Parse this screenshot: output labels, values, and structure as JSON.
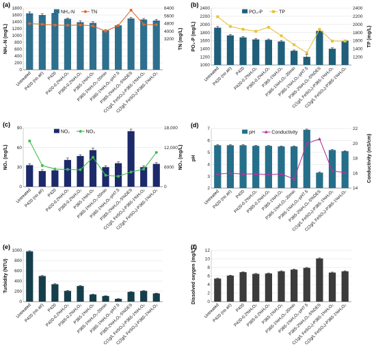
{
  "chart_data": [
    {
      "panel": "(a)",
      "type": "bar",
      "categories": [
        "Untreated",
        "P420 (no air)",
        "P420",
        "P420-0.2%H₂O₂",
        "P365-0.2%H₂O₂",
        "P365-1%H₂O₂",
        "P365-1%H₂O₂-20min",
        "P365-1%H₂O₂-pH7.5",
        "P365-2%H₂O₂-5%DES",
        "C(1g/L FeSO₄)-P365-1%H₂O₂",
        "C(2g/L FeSO₄)-P365-1%H₂O₂"
      ],
      "ylabel": "NH₄-N (mg/L)",
      "y2label": "TN (mg/L)",
      "ylim": [
        0,
        1800
      ],
      "yticks": [
        0,
        200,
        400,
        600,
        800,
        1000,
        1200,
        1400,
        1600,
        1800
      ],
      "y2lim": [
        0,
        6400
      ],
      "y2ticks": [
        3200,
        4000,
        4800,
        5600,
        6400
      ],
      "legend": "top-center",
      "series": [
        {
          "name": "NH₄-N",
          "kind": "bar",
          "axis": "left",
          "color": "#2e6f8e",
          "values": [
            1650,
            1600,
            1660,
            1490,
            1390,
            1370,
            1150,
            1300,
            1500,
            1470,
            1440
          ],
          "errors": [
            45,
            40,
            35,
            20,
            40,
            35,
            20,
            25,
            35,
            30,
            35
          ]
        },
        {
          "name": "TN",
          "kind": "line",
          "axis": "right",
          "color": "#e06a2c",
          "marker": "circle",
          "values": [
            4800,
            4730,
            4650,
            4620,
            4660,
            4560,
            4000,
            4600,
            6200,
            4700,
            4680
          ]
        }
      ]
    },
    {
      "panel": "(b)",
      "type": "bar",
      "categories": [
        "Untreated",
        "P420 (no air)",
        "P420",
        "P420-0.2%H₂O₂",
        "P365-0.2%H₂O₂",
        "P365-1%H₂O₂",
        "P365-1%H₂O₂-20min",
        "P365-1%H₂O₂-pH7.5",
        "P365-2%H₂O₂-5%DES",
        "C(1g/L FeSO₄)-P365-1%H₂O₂",
        "C(2g/L FeSO₄)-P365-1%H₂O₂"
      ],
      "ylabel": "PO₄-P (mg/L)",
      "y2label": "TP (mg/L)",
      "ylim": [
        1000,
        2400
      ],
      "yticks": [
        1000,
        1200,
        1400,
        1600,
        1800,
        2000,
        2200,
        2400
      ],
      "y2lim": [
        1000,
        2400
      ],
      "y2ticks": [
        1200,
        1400,
        1600,
        1800,
        2000,
        2200,
        2400
      ],
      "legend": "top-center",
      "series": [
        {
          "name": "PO₄-P",
          "kind": "bar",
          "axis": "left",
          "color": "#1f5f7a",
          "values": [
            1920,
            1730,
            1680,
            1630,
            1620,
            1580,
            1350,
            1200,
            1840,
            1400,
            1600
          ],
          "errors": [
            30,
            25,
            20,
            20,
            20,
            25,
            20,
            60,
            30,
            25,
            20
          ]
        },
        {
          "name": "TP",
          "kind": "line",
          "axis": "right",
          "color": "#e8c33a",
          "marker": "square",
          "values": [
            2190,
            1950,
            1880,
            1830,
            1930,
            1720,
            1500,
            1300,
            1880,
            1590,
            1590
          ]
        }
      ]
    },
    {
      "panel": "(c)",
      "type": "bar",
      "categories": [
        "Untreated",
        "P420 (no air)",
        "P420",
        "P420-0.2%H₂O₂",
        "P365-0.2%H₂O₂",
        "P365-1%H₂O₂",
        "P365-1%H₂O₂-20min",
        "P365-1%H₂O₂-pH7.5",
        "P365-2%H₂O₂-5%DES",
        "C(1g/L FeSO₄)-P365-1%H₂O₂",
        "C(2g/L FeSO₄)-P365-1%H₂O₂"
      ],
      "ylabel": "NO₂ (mg/L)",
      "y2label": "NO₃ (mg/L)",
      "ylim": [
        0,
        90
      ],
      "yticks": [
        0,
        30,
        60,
        90
      ],
      "y2lim": [
        0,
        18000
      ],
      "y2ticks": [
        0,
        6000,
        12000,
        18000
      ],
      "legend": "top-center",
      "series": [
        {
          "name": "NO₂",
          "kind": "bar",
          "axis": "left",
          "color": "#1c2a6b",
          "values": [
            33,
            24,
            25,
            41,
            47,
            56,
            30,
            36,
            85,
            30,
            35
          ],
          "errors": [
            2,
            2,
            2,
            3,
            2,
            3,
            2,
            2,
            3,
            2,
            2
          ]
        },
        {
          "name": "NO₃",
          "kind": "line",
          "axis": "right",
          "color": "#3cbf4a",
          "marker": "circle",
          "values": [
            14000,
            6500,
            5400,
            5300,
            5200,
            9000,
            3500,
            3200,
            4500,
            5400,
            10500
          ]
        }
      ]
    },
    {
      "panel": "(d)",
      "type": "bar",
      "categories": [
        "Untreated",
        "P420 (no air)",
        "P420",
        "P420-0.2%H₂O₂",
        "P365-0.2%H₂O₂",
        "P365-1%H₂O₂",
        "P365-1%H₂O₂-20min",
        "P365-1%H₂O₂-pH7.5",
        "P365-2%H₂O₂-5%DES",
        "C(1g/L FeSO₄)-P365-1%H₂O₂",
        "C(2g/L FeSO₄)-P365-1%H₂O₂"
      ],
      "ylabel": "pH",
      "y2label": "Conductivity (mS/cm)",
      "ylim": [
        2,
        7
      ],
      "yticks": [
        2,
        3,
        4,
        5,
        6,
        7
      ],
      "y2lim": [
        14,
        22
      ],
      "y2ticks": [
        14,
        16,
        18,
        20,
        22
      ],
      "legend": "top-center",
      "series": [
        {
          "name": "pH",
          "kind": "bar",
          "axis": "left",
          "color": "#256f8a",
          "values": [
            5.6,
            5.6,
            5.6,
            5.55,
            5.55,
            5.5,
            5.5,
            6.9,
            3.3,
            5.2,
            5.1
          ],
          "errors": [
            0.05,
            0.05,
            0.05,
            0.04,
            0.04,
            0.04,
            0.04,
            0.05,
            0.05,
            0.04,
            0.04
          ]
        },
        {
          "name": "Conductivity",
          "kind": "line",
          "axis": "right",
          "color": "#b0339a",
          "marker": "triangle",
          "values": [
            15.9,
            16.0,
            15.9,
            15.9,
            15.8,
            15.9,
            15.2,
            20.0,
            20.6,
            16.3,
            16.1
          ]
        }
      ]
    },
    {
      "panel": "(e)",
      "type": "bar",
      "categories": [
        "Untreated",
        "P420 (no air)",
        "P420",
        "P420-0.2%H₂O₂",
        "P365-0.2%H₂O₂",
        "P365-1%H₂O₂",
        "P365-1%H₂O₂-20min",
        "P365-1%H₂O₂-pH7.5",
        "P365-2%H₂O₂-5%DES",
        "C(1g/L FeSO₄)-P365-1%H₂O₂",
        "C(2g/L FeSO₄)-P365-1%H₂O₂"
      ],
      "ylabel": "Turbidity (NTU)",
      "ylim": [
        0,
        1000
      ],
      "yticks": [
        0,
        200,
        400,
        600,
        800,
        1000
      ],
      "series": [
        {
          "kind": "bar",
          "axis": "left",
          "color": "#163e4a",
          "values": [
            980,
            500,
            340,
            210,
            305,
            140,
            110,
            55,
            190,
            210,
            160
          ],
          "errors": [
            10,
            10,
            10,
            8,
            8,
            6,
            6,
            4,
            6,
            6,
            6
          ]
        }
      ]
    },
    {
      "panel": "(f)",
      "type": "bar",
      "categories": [
        "Untreated",
        "P420 (no air)",
        "P420",
        "P420-0.2%H₂O₂",
        "P365-0.2%H₂O₂",
        "P365-1%H₂O₂",
        "P365-1%H₂O₂-20min",
        "P365-1%H₂O₂-pH7.5",
        "P365-2%H₂O₂-5%DES",
        "C(1g/L FeSO₄)-P365-1%H₂O₂",
        "C(2g/L FeSO₄)-P365-1%H₂O₂"
      ],
      "ylabel": "Dissolved oxygen (mg/L)",
      "ylim": [
        0,
        12
      ],
      "yticks": [
        0,
        2,
        4,
        6,
        8,
        10,
        12
      ],
      "series": [
        {
          "kind": "bar",
          "axis": "left",
          "color": "#3b3b3b",
          "values": [
            5.4,
            6.1,
            6.9,
            6.5,
            6.6,
            7.1,
            7.5,
            7.9,
            10.1,
            6.8,
            7.1
          ],
          "errors": [
            0.1,
            0.1,
            0.1,
            0.1,
            0.1,
            0.1,
            0.1,
            0.1,
            0.15,
            0.1,
            0.1
          ]
        }
      ]
    }
  ]
}
